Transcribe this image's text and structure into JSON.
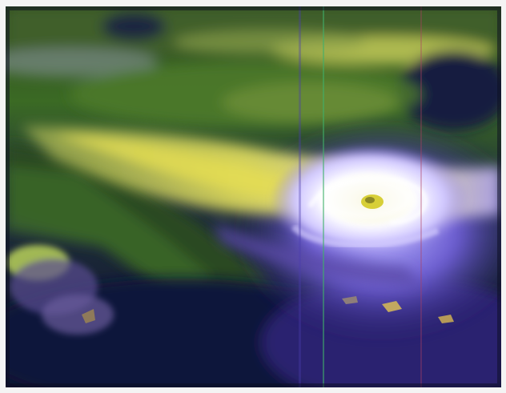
{
  "image": {
    "subject": "satellite-hurricane-image",
    "colors": {
      "ocean_dark": "#12163a",
      "ocean_purple": "#4a3c9a",
      "land_green": "#2f5a1e",
      "cloud_yellow": "#d9d85a",
      "eye_white": "#f6f4ff",
      "eye_core": "#d7cf38"
    }
  }
}
